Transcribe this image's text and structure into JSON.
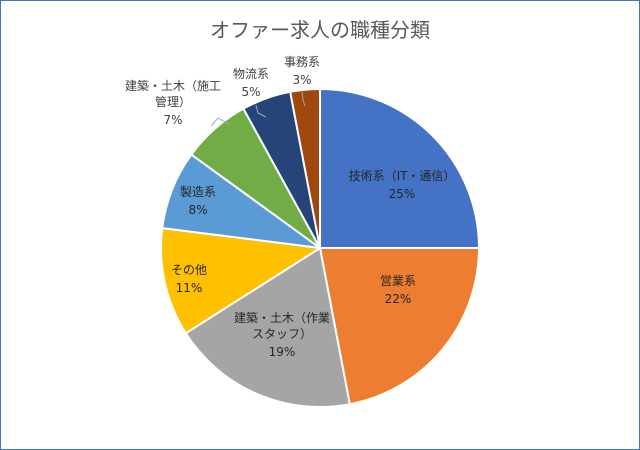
{
  "chart_data": {
    "type": "pie",
    "title": "オファー求人の職種分類",
    "slices": [
      {
        "name": "技術系（IT・通信）",
        "name_lines": [
          "技術系（IT・通信）"
        ],
        "value": 25,
        "value_label": "25%",
        "color": "#4472c4",
        "label_color": "#262626"
      },
      {
        "name": "営業系",
        "name_lines": [
          "営業系"
        ],
        "value": 22,
        "value_label": "22%",
        "color": "#ed7d31",
        "label_color": "#262626"
      },
      {
        "name": "建築・土木（作業スタッフ）",
        "name_lines": [
          "建築・土木（作業",
          "スタッフ）"
        ],
        "value": 19,
        "value_label": "19%",
        "color": "#a5a5a5",
        "label_color": "#262626"
      },
      {
        "name": "その他",
        "name_lines": [
          "その他"
        ],
        "value": 11,
        "value_label": "11%",
        "color": "#ffc000",
        "label_color": "#262626"
      },
      {
        "name": "製造系",
        "name_lines": [
          "製造系"
        ],
        "value": 8,
        "value_label": "8%",
        "color": "#5b9bd5",
        "label_color": "#262626"
      },
      {
        "name": "建築・土木（施工管理）",
        "name_lines": [
          "建築・土木（施工",
          "管理）"
        ],
        "value": 7,
        "value_label": "7%",
        "color": "#70ad47",
        "label_color": "#404040"
      },
      {
        "name": "物流系",
        "name_lines": [
          "物流系"
        ],
        "value": 5,
        "value_label": "5%",
        "color": "#264478",
        "label_color": "#404040"
      },
      {
        "name": "事務系",
        "name_lines": [
          "事務系"
        ],
        "value": 3,
        "value_label": "3%",
        "color": "#9e480e",
        "label_color": "#404040"
      }
    ]
  }
}
